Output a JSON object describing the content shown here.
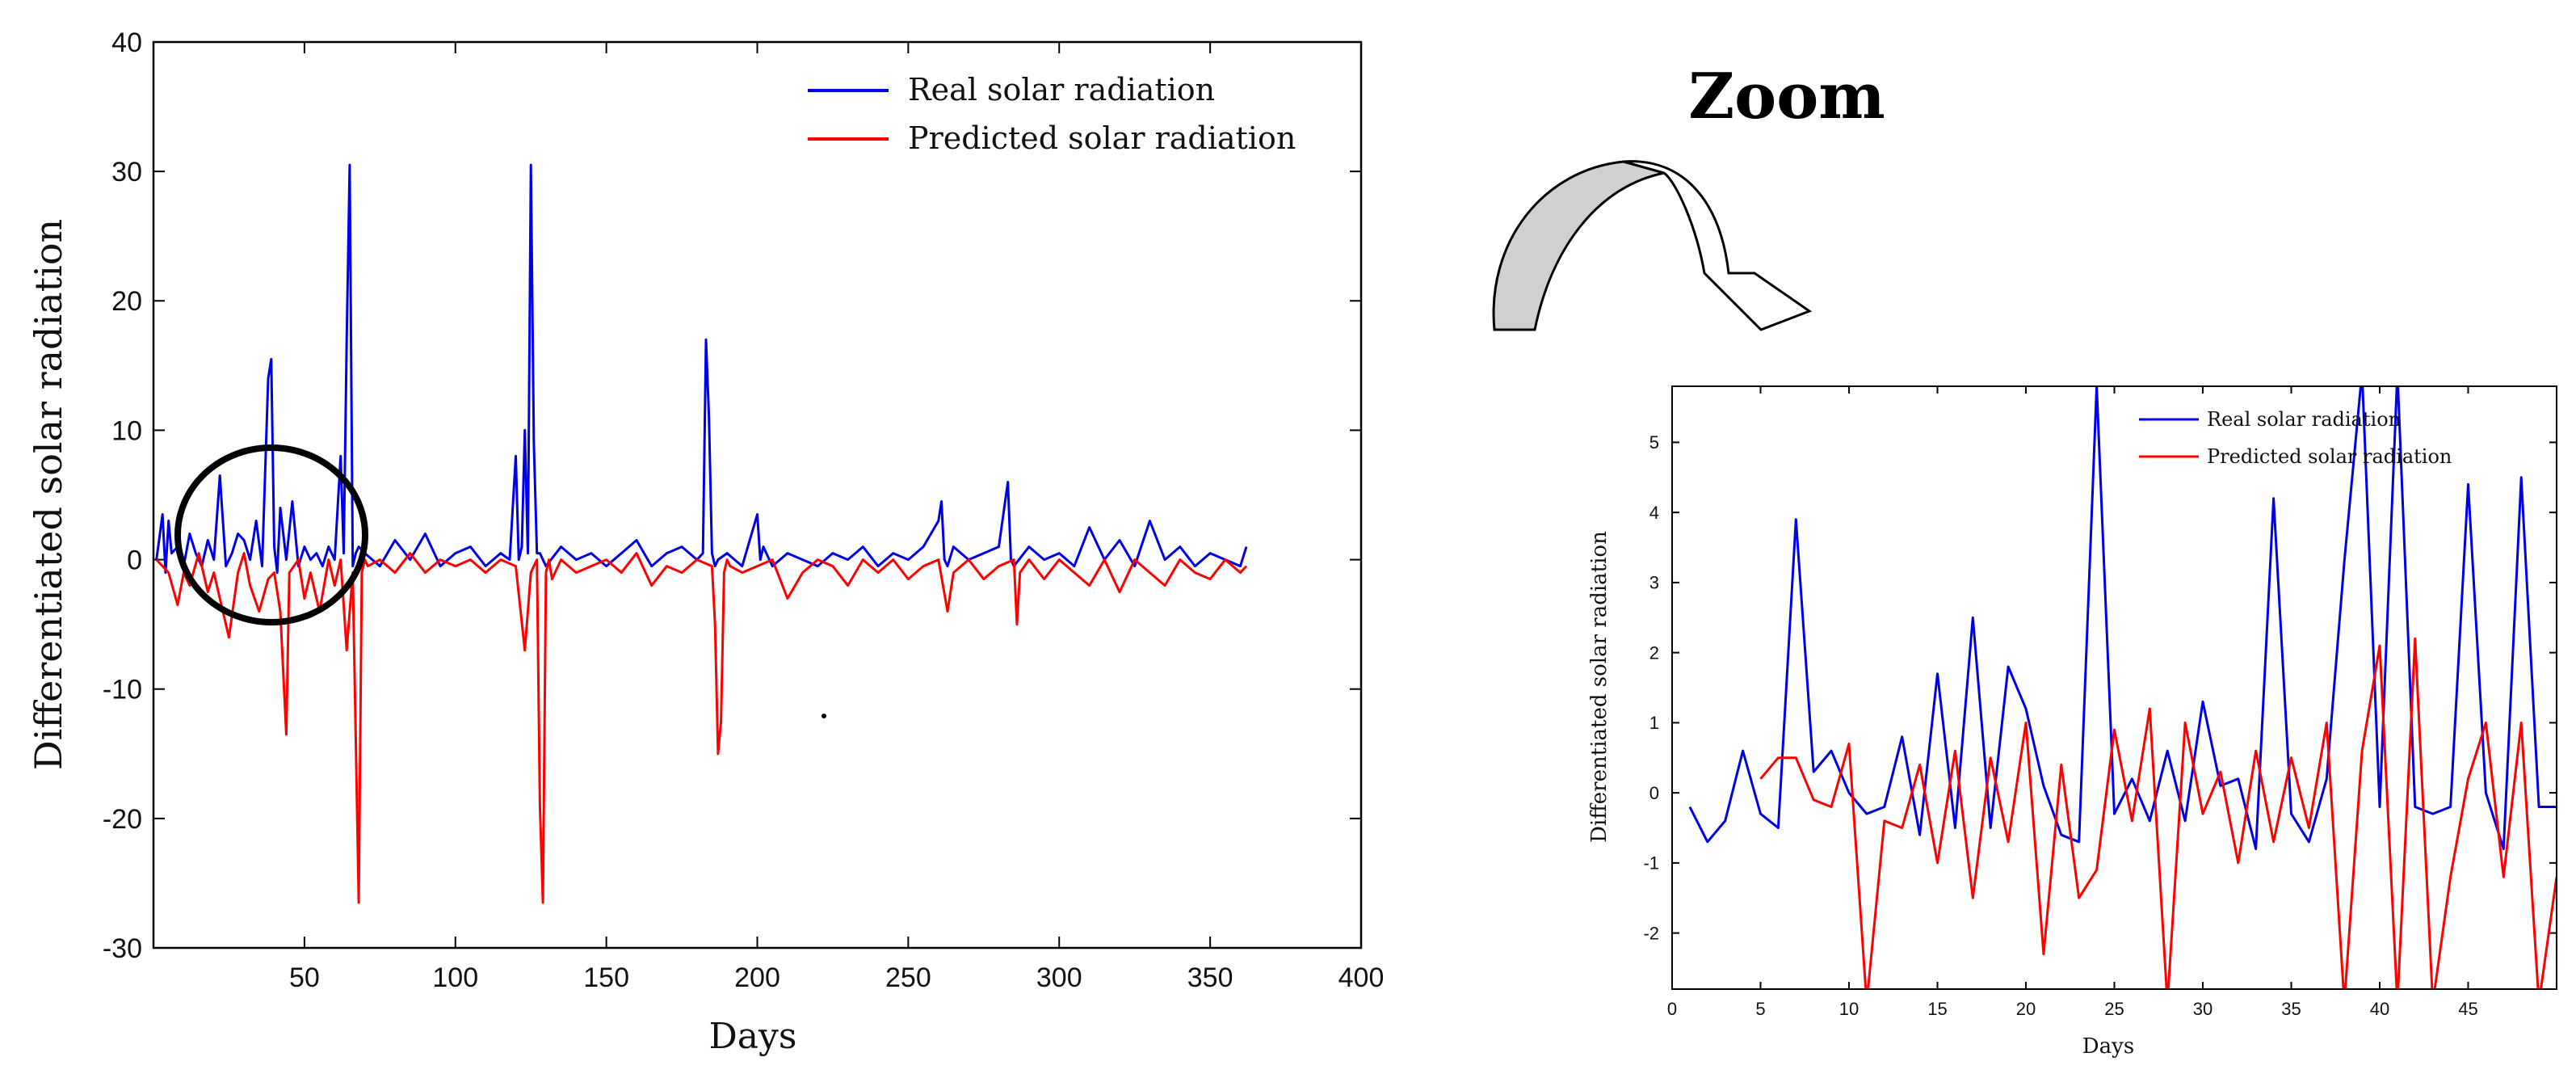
{
  "colors": {
    "real": "#0000e6",
    "predicted": "#ff0000",
    "axis": "#000000",
    "arrow_fill": "#d0d0d0"
  },
  "annotation": {
    "zoom_label": "Zoom"
  },
  "chart_data": [
    {
      "id": "main",
      "type": "line",
      "title": "",
      "xlabel": "Days",
      "ylabel": "Differentiated solar radiation",
      "xlim": [
        0,
        400
      ],
      "ylim": [
        -30,
        40
      ],
      "xticks": [
        50,
        100,
        150,
        200,
        250,
        300,
        350,
        400
      ],
      "yticks": [
        -30,
        -20,
        -10,
        0,
        10,
        20,
        30,
        40
      ],
      "legend_location": "top-right",
      "series": [
        {
          "name": "Real solar radiation",
          "color": "#0000e6",
          "x": [
            1,
            3,
            4,
            5,
            6,
            8,
            10,
            12,
            14,
            16,
            18,
            20,
            22,
            24,
            26,
            28,
            30,
            32,
            34,
            36,
            38,
            39,
            40,
            41,
            42,
            44,
            46,
            48,
            50,
            52,
            54,
            56,
            58,
            60,
            62,
            63,
            64,
            65,
            66,
            67,
            68,
            70,
            75,
            80,
            85,
            90,
            95,
            100,
            105,
            110,
            115,
            118,
            120,
            121,
            122,
            123,
            124,
            125,
            126,
            127,
            128,
            130,
            135,
            140,
            145,
            150,
            155,
            160,
            165,
            170,
            175,
            180,
            182,
            183,
            184,
            185,
            186,
            187,
            190,
            195,
            200,
            201,
            202,
            205,
            210,
            215,
            220,
            225,
            230,
            235,
            240,
            245,
            250,
            255,
            260,
            261,
            262,
            263,
            265,
            270,
            275,
            280,
            283,
            284,
            285,
            290,
            295,
            300,
            305,
            310,
            315,
            320,
            325,
            330,
            335,
            340,
            345,
            350,
            355,
            360,
            362
          ],
          "y": [
            0,
            3.5,
            -1,
            3,
            0.5,
            1,
            -0.5,
            2,
            0.5,
            -0.5,
            1.5,
            0,
            6.5,
            -0.5,
            0.5,
            2,
            1.5,
            0,
            3,
            -0.5,
            14,
            15.5,
            1,
            -1,
            4,
            0,
            4.5,
            -0.5,
            1,
            0,
            0.5,
            -0.5,
            1,
            0,
            8,
            0.5,
            17,
            30.5,
            -0.5,
            0.5,
            1,
            0.5,
            -0.5,
            1.5,
            0,
            2,
            -0.5,
            0.5,
            1,
            -0.5,
            0.5,
            0,
            8,
            0,
            1,
            10,
            0.5,
            30.5,
            9,
            0.5,
            0.5,
            -0.5,
            1,
            0,
            0.5,
            -0.5,
            0.5,
            1.5,
            -0.5,
            0.5,
            1,
            0,
            0.5,
            17,
            11,
            0.5,
            -0.5,
            0,
            0.5,
            -0.5,
            3.5,
            0,
            1,
            -0.5,
            0.5,
            0,
            -0.5,
            0.5,
            0,
            1,
            -0.5,
            0.5,
            0,
            1,
            3,
            4.5,
            0,
            -0.5,
            1,
            0,
            0.5,
            1,
            6,
            0,
            -0.5,
            1,
            0,
            0.5,
            -0.5,
            2.5,
            0,
            1.5,
            -0.5,
            3,
            0,
            1,
            -0.5,
            0.5,
            0,
            -0.5,
            1
          ]
        },
        {
          "name": "Predicted solar radiation",
          "color": "#ff0000",
          "x": [
            1,
            5,
            8,
            10,
            12,
            15,
            18,
            20,
            22,
            25,
            28,
            30,
            32,
            35,
            38,
            40,
            42,
            44,
            45,
            48,
            50,
            52,
            55,
            58,
            60,
            62,
            64,
            66,
            68,
            69,
            70,
            71,
            75,
            80,
            85,
            90,
            95,
            100,
            105,
            110,
            115,
            120,
            123,
            125,
            126,
            127,
            128,
            129,
            130,
            131,
            132,
            135,
            140,
            145,
            150,
            155,
            160,
            165,
            170,
            175,
            180,
            185,
            186,
            187,
            188,
            189,
            190,
            191,
            195,
            200,
            205,
            210,
            215,
            220,
            225,
            230,
            235,
            240,
            245,
            250,
            255,
            260,
            263,
            265,
            270,
            275,
            280,
            285,
            286,
            287,
            290,
            295,
            300,
            305,
            310,
            315,
            320,
            325,
            330,
            335,
            340,
            345,
            350,
            355,
            360,
            362
          ],
          "y": [
            0,
            -1,
            -3.5,
            -1,
            -2,
            0.5,
            -2.5,
            -1,
            -3,
            -6,
            -1,
            0.5,
            -2,
            -4,
            -1.5,
            -1,
            -4,
            -13.5,
            -1,
            0,
            -3,
            -1,
            -4,
            0,
            -2,
            0,
            -7,
            -1,
            -26.5,
            -1,
            0,
            -0.5,
            0,
            -1,
            0.5,
            -1,
            0,
            -0.5,
            0,
            -1,
            0,
            -0.5,
            -7,
            -1,
            -0.5,
            0,
            -19,
            -26.5,
            -1,
            0,
            -1.5,
            0,
            -1,
            -0.5,
            0,
            -1,
            0.5,
            -2,
            -0.5,
            -1,
            0,
            -0.5,
            -5,
            -15,
            -12.5,
            -1,
            0,
            -0.5,
            -1,
            -0.5,
            0,
            -3,
            -1,
            0,
            -0.5,
            -2,
            0,
            -1,
            0,
            -1.5,
            -0.5,
            0,
            -4,
            -1,
            0,
            -1.5,
            -0.5,
            0,
            -5,
            -1,
            0,
            -1.5,
            0,
            -1,
            -2,
            0,
            -2.5,
            0,
            -1,
            -2,
            0,
            -1,
            -1.5,
            0,
            -1,
            -0.5
          ]
        }
      ]
    },
    {
      "id": "zoom",
      "type": "line",
      "title": "",
      "xlabel": "Days",
      "ylabel": "Differentiated solar radiation",
      "xlim": [
        0,
        50
      ],
      "ylim": [
        -2.8,
        5.8
      ],
      "xticks": [
        0,
        5,
        10,
        15,
        20,
        25,
        30,
        35,
        40,
        45
      ],
      "yticks": [
        -2,
        -1,
        0,
        1,
        2,
        3,
        4,
        5
      ],
      "legend_location": "top-right",
      "series": [
        {
          "name": "Real solar radiation",
          "color": "#0000e6",
          "x": [
            1,
            2,
            3,
            4,
            5,
            6,
            7,
            8,
            9,
            10,
            11,
            12,
            13,
            14,
            15,
            16,
            17,
            18,
            19,
            20,
            21,
            22,
            23,
            24,
            25,
            26,
            27,
            28,
            29,
            30,
            31,
            32,
            33,
            34,
            35,
            36,
            37,
            38,
            39,
            40,
            41,
            42,
            43,
            44,
            45,
            46,
            47,
            48,
            49,
            50
          ],
          "y": [
            -0.2,
            -0.7,
            -0.4,
            0.6,
            -0.3,
            -0.5,
            3.9,
            0.3,
            0.6,
            0,
            -0.3,
            -0.2,
            0.8,
            -0.6,
            1.7,
            -0.5,
            2.5,
            -0.5,
            1.8,
            1.2,
            0.1,
            -0.6,
            -0.7,
            5.8,
            -0.3,
            0.2,
            -0.4,
            0.6,
            -0.4,
            1.3,
            0.1,
            0.2,
            -0.8,
            4.2,
            -0.3,
            -0.7,
            0.2,
            3.3,
            6,
            -0.2,
            6,
            -0.2,
            -0.3,
            -0.2,
            4.4,
            0,
            -0.8,
            4.5,
            -0.2,
            -0.2
          ]
        },
        {
          "name": "Predicted solar radiation",
          "color": "#ff0000",
          "x": [
            5,
            6,
            7,
            8,
            9,
            10,
            11,
            12,
            13,
            14,
            15,
            16,
            17,
            18,
            19,
            20,
            21,
            22,
            23,
            24,
            25,
            26,
            27,
            28,
            29,
            30,
            31,
            32,
            33,
            34,
            35,
            36,
            37,
            38,
            39,
            40,
            41,
            42,
            43,
            44,
            45,
            46,
            47,
            48,
            49,
            50
          ],
          "y": [
            0.2,
            0.5,
            0.5,
            -0.1,
            -0.2,
            0.7,
            -3,
            -0.4,
            -0.5,
            0.4,
            -1,
            0.6,
            -1.5,
            0.5,
            -0.7,
            1,
            -2.3,
            0.4,
            -1.5,
            -1.1,
            0.9,
            -0.4,
            1.2,
            -3,
            1,
            -0.3,
            0.3,
            -1,
            0.6,
            -0.7,
            0.5,
            -0.5,
            1,
            -3,
            0.6,
            2.1,
            -3,
            2.2,
            -3,
            -1.2,
            0.2,
            1,
            -1.2,
            1,
            -3,
            -1.2
          ]
        }
      ]
    }
  ]
}
